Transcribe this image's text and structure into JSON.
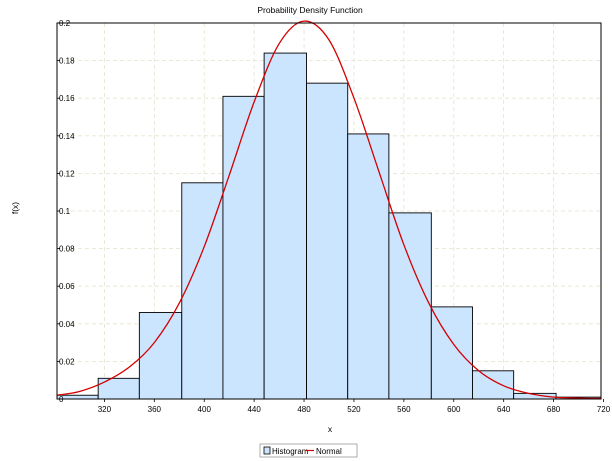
{
  "chart_data": {
    "type": "bar",
    "title": "Probability Density Function",
    "xlabel": "x",
    "ylabel": "f(x)",
    "xlim": [
      282,
      718
    ],
    "ylim": [
      0,
      0.2
    ],
    "x_ticks": [
      "320",
      "360",
      "400",
      "440",
      "480",
      "520",
      "560",
      "600",
      "640",
      "680",
      "720"
    ],
    "y_ticks": [
      "0",
      "0.02",
      "0.04",
      "0.06",
      "0.08",
      "0.1",
      "0.12",
      "0.14",
      "0.16",
      "0.18",
      "0.2"
    ],
    "grid": true,
    "legend_position": "bottom-center",
    "series": [
      {
        "name": "Histogram",
        "kind": "histogram",
        "color": "#cce5ff",
        "edge_color": "#000000",
        "bin_edges": [
          282,
          315,
          348,
          382,
          415,
          448,
          482,
          515,
          548,
          582,
          615,
          648,
          682,
          718
        ],
        "values": [
          0.002,
          0.011,
          0.046,
          0.115,
          0.161,
          0.184,
          0.168,
          0.141,
          0.099,
          0.049,
          0.015,
          0.003,
          0.001
        ]
      },
      {
        "name": "Normal",
        "kind": "line",
        "color": "#d40000",
        "x": [
          282,
          300,
          320,
          340,
          360,
          380,
          400,
          420,
          440,
          460,
          480,
          500,
          520,
          540,
          560,
          580,
          600,
          620,
          640,
          660,
          680,
          700,
          718
        ],
        "values": [
          0.002,
          0.004,
          0.009,
          0.017,
          0.03,
          0.051,
          0.081,
          0.119,
          0.158,
          0.189,
          0.201,
          0.191,
          0.16,
          0.121,
          0.082,
          0.051,
          0.029,
          0.015,
          0.007,
          0.003,
          0.001,
          0.0005,
          0.0003
        ]
      }
    ]
  }
}
